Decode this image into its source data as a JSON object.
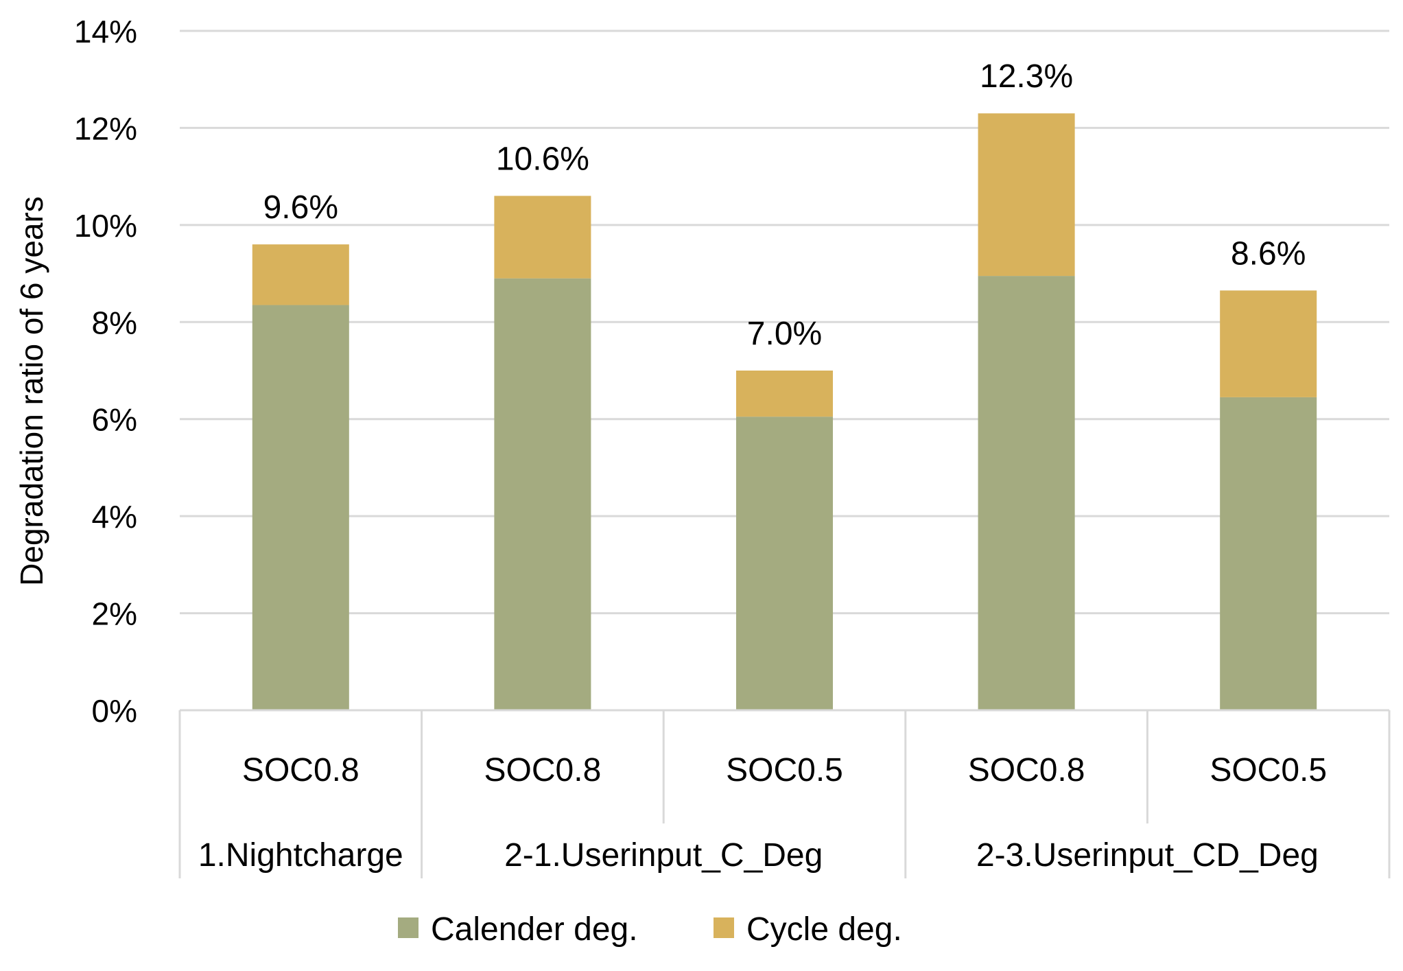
{
  "chart_data": {
    "type": "bar",
    "stacked": true,
    "title": "",
    "xlabel": "",
    "ylabel": "Degradation ratio of 6 years",
    "ylim": [
      0,
      14
    ],
    "yticks": [
      0,
      2,
      4,
      6,
      8,
      10,
      12,
      14
    ],
    "ytick_format": "%",
    "grid": true,
    "legend_position": "bottom-center",
    "categories": [
      "SOC0.8",
      "SOC0.8",
      "SOC0.5",
      "SOC0.8",
      "SOC0.5"
    ],
    "groups": [
      {
        "label": "1.Nightcharge",
        "count": 1
      },
      {
        "label": "2-1.Userinput_C_Deg",
        "count": 2
      },
      {
        "label": "2-3.Userinput_CD_Deg",
        "count": 2
      }
    ],
    "series": [
      {
        "name": "Calender deg.",
        "color": "#a4ab80",
        "values": [
          8.35,
          8.9,
          6.05,
          8.95,
          6.45
        ]
      },
      {
        "name": "Cycle deg.",
        "color": "#d8b25c",
        "values": [
          1.25,
          1.7,
          0.95,
          3.35,
          2.2
        ]
      }
    ],
    "total_labels": [
      "9.6%",
      "10.6%",
      "7.0%",
      "12.3%",
      "8.6%"
    ]
  }
}
